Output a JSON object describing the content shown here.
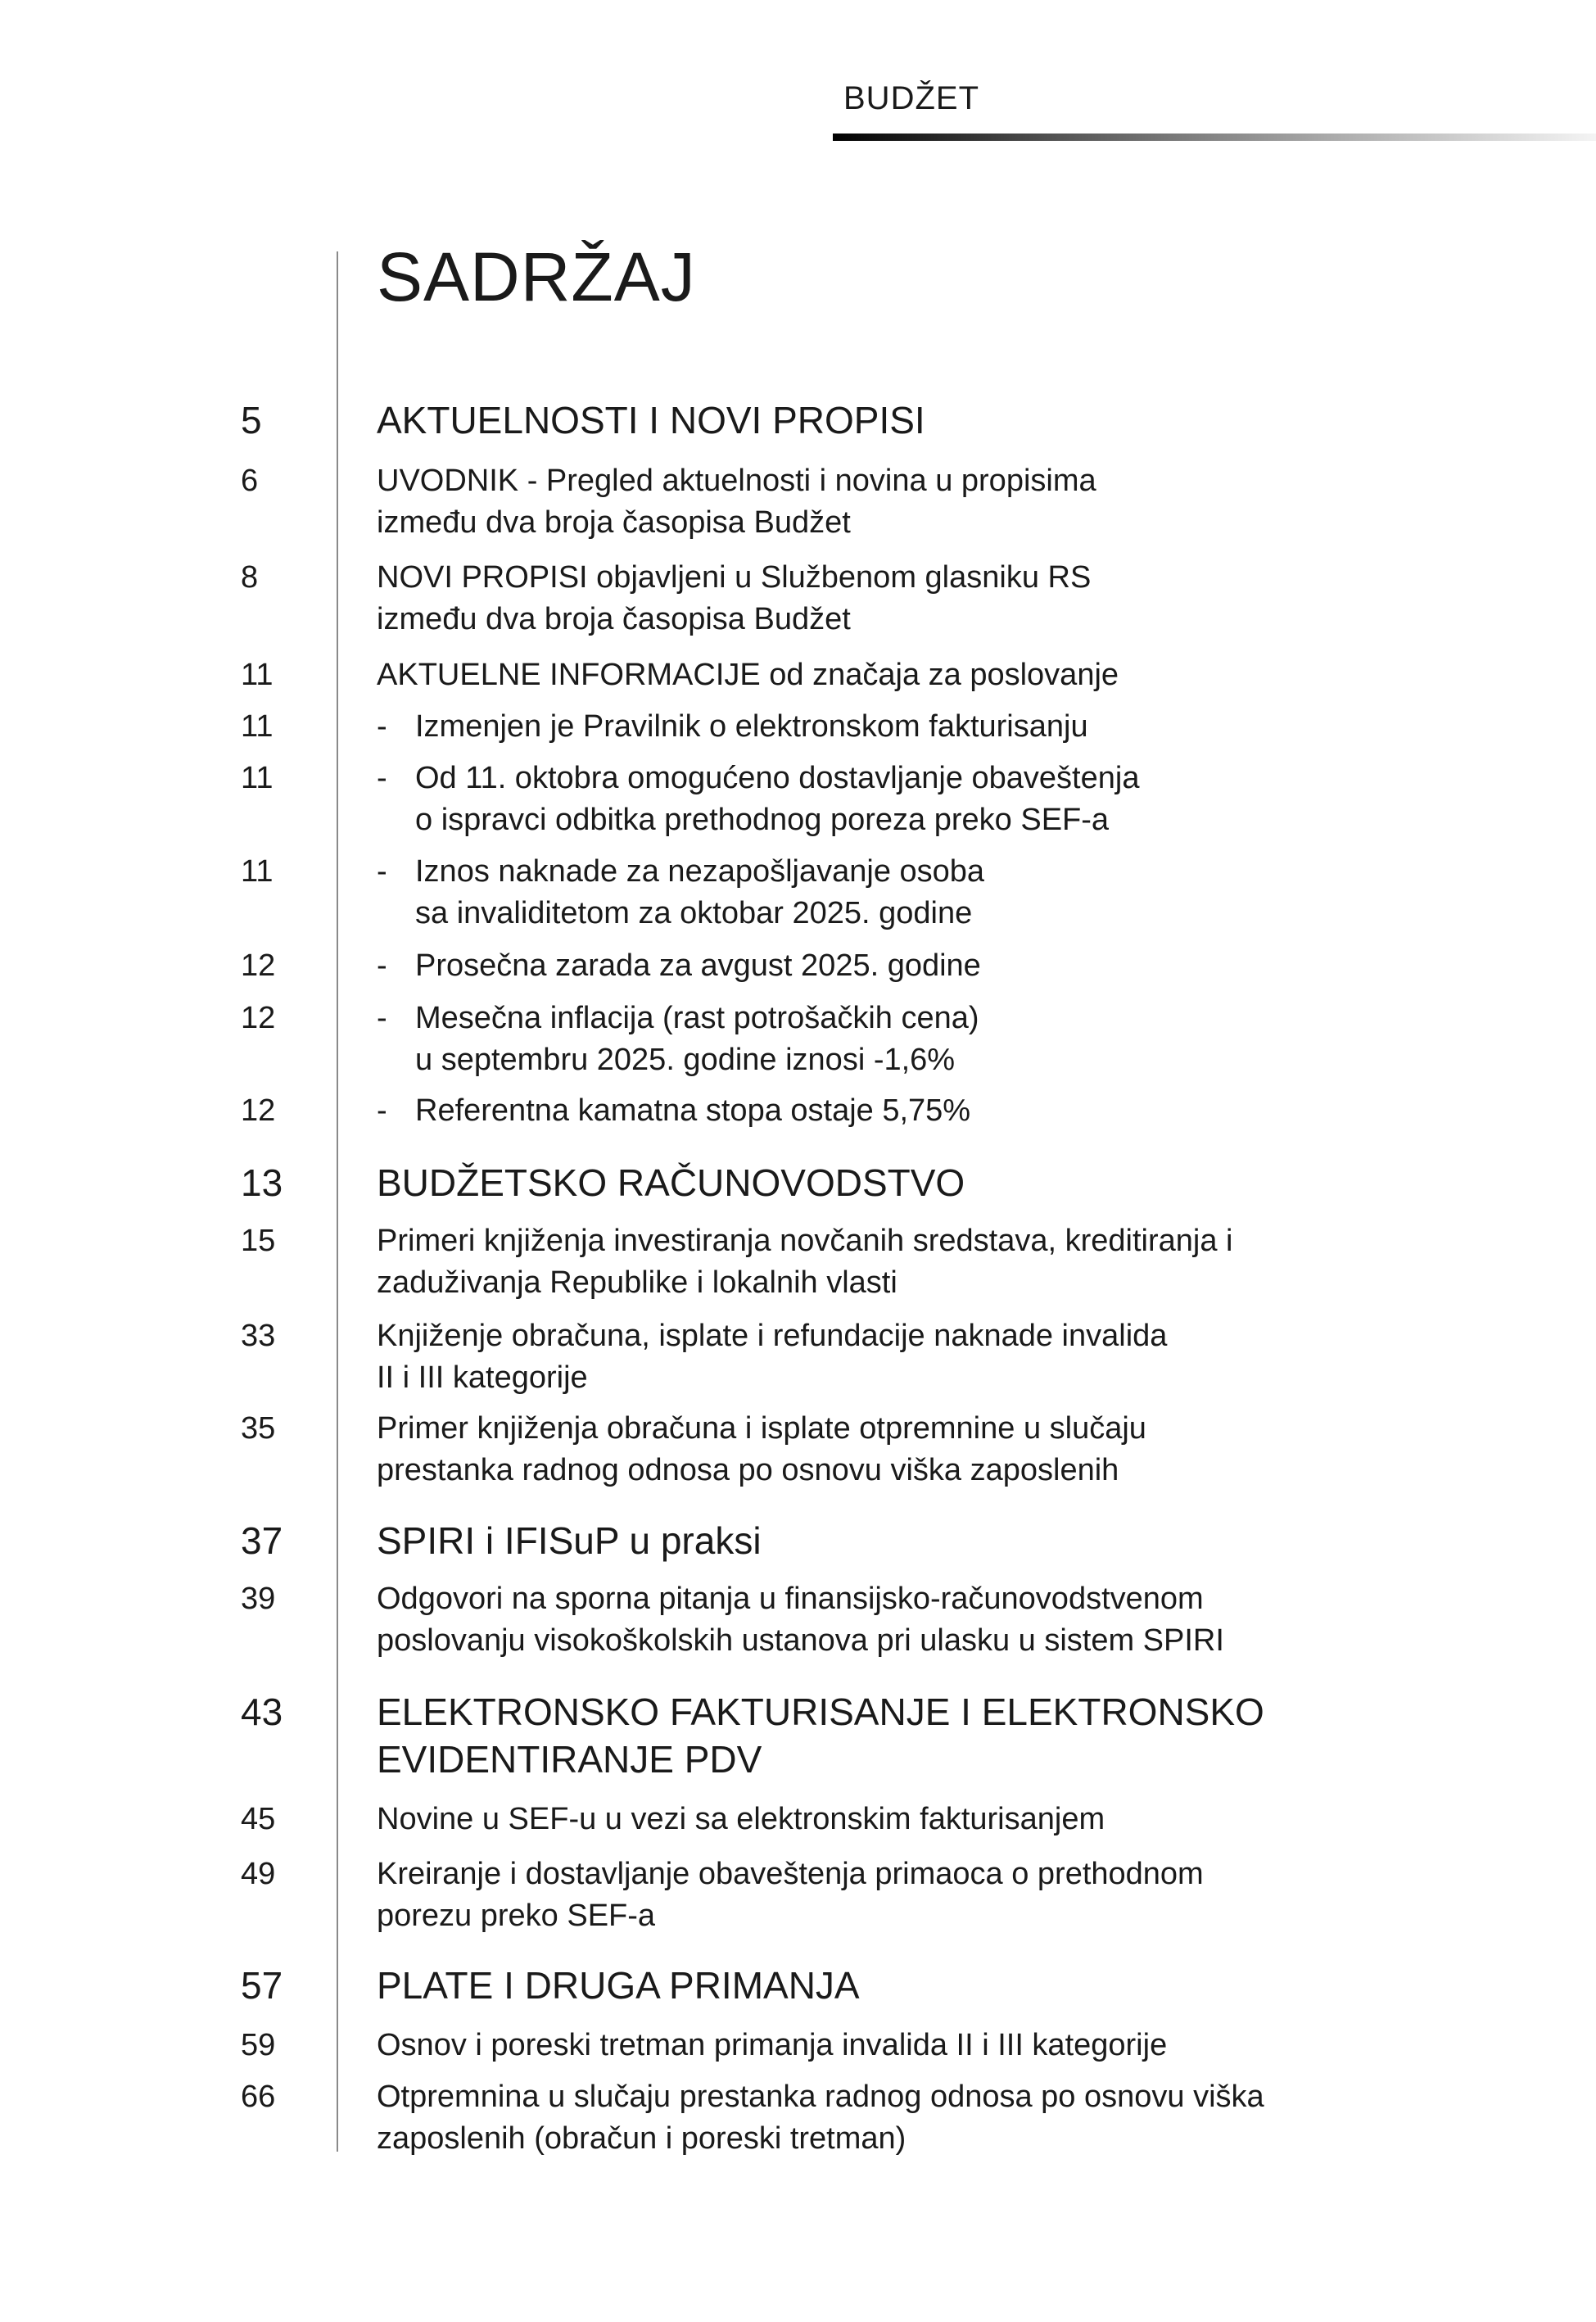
{
  "header": {
    "magazine": "BUDŽET"
  },
  "title": "SADRŽAJ",
  "entries": [
    {
      "type": "section",
      "page": "5",
      "lines": [
        "AKTUELNOSTI I NOVI PROPISI"
      ]
    },
    {
      "type": "item",
      "page": "6",
      "lines": [
        "UVODNIK - Pregled aktuelnosti i novina u propisima",
        "između dva broja časopisa Budžet"
      ]
    },
    {
      "type": "item",
      "page": "8",
      "lines": [
        "NOVI PROPISI objavljeni u Službenom glasniku RS",
        "između dva broja časopisa Budžet"
      ]
    },
    {
      "type": "item",
      "page": "11",
      "lines": [
        "AKTUELNE INFORMACIJE od značaja za poslovanje"
      ]
    },
    {
      "type": "item",
      "dash": "-",
      "page": "11",
      "lines": [
        "Izmenjen je Pravilnik o elektronskom fakturisanju"
      ]
    },
    {
      "type": "item",
      "dash": "-",
      "page": "11",
      "lines": [
        "Od 11. oktobra omogućeno dostavljanje obaveštenja",
        "o ispravci odbitka prethodnog poreza preko SEF-a"
      ]
    },
    {
      "type": "item",
      "dash": "-",
      "page": "11",
      "lines": [
        "Iznos naknade za nezapošljavanje osoba",
        "sa invaliditetom za oktobar 2025. godine"
      ]
    },
    {
      "type": "item",
      "dash": "-",
      "page": "12",
      "lines": [
        "Prosečna zarada za avgust 2025. godine"
      ]
    },
    {
      "type": "item",
      "dash": "-",
      "page": "12",
      "lines": [
        "Mesečna inflacija (rast potrošačkih cena)",
        "u septembru 2025. godine iznosi -1,6%"
      ]
    },
    {
      "type": "item",
      "dash": "-",
      "page": "12",
      "lines": [
        "Referentna kamatna stopa ostaje 5,75%"
      ]
    },
    {
      "type": "section",
      "page": "13",
      "lines": [
        "BUDŽETSKO RAČUNOVODSTVO"
      ]
    },
    {
      "type": "item",
      "page": "15",
      "lines": [
        "Primeri knjiženja investiranja novčanih sredstava, kreditiranja i",
        "zaduživanja Republike i lokalnih vlasti"
      ]
    },
    {
      "type": "item",
      "page": "33",
      "lines": [
        "Knjiženje obračuna, isplate i refundacije naknade invalida",
        "II i III kategorije"
      ]
    },
    {
      "type": "item",
      "page": "35",
      "lines": [
        "Primer knjiženja obračuna i isplate otpremnine u slučaju",
        "prestanka radnog odnosa po osnovu viška zaposlenih"
      ]
    },
    {
      "type": "section",
      "page": "37",
      "lines": [
        "SPIRI i IFISuP u praksi"
      ]
    },
    {
      "type": "item",
      "page": "39",
      "lines": [
        "Odgovori na sporna pitanja u finansijsko-računovodstvenom",
        "poslovanju visokoškolskih ustanova pri ulasku u sistem SPIRI"
      ]
    },
    {
      "type": "section",
      "page": "43",
      "lines": [
        "ELEKTRONSKO FAKTURISANJE I ELEKTRONSKO",
        "EVIDENTIRANJE PDV"
      ]
    },
    {
      "type": "item",
      "page": "45",
      "lines": [
        "Novine u SEF-u u vezi sa elektronskim fakturisanjem"
      ]
    },
    {
      "type": "item",
      "page": "49",
      "lines": [
        "Kreiranje i dostavljanje obaveštenja primaoca o prethodnom",
        "porezu preko SEF-a"
      ]
    },
    {
      "type": "section",
      "page": "57",
      "lines": [
        "PLATE I DRUGA PRIMANJA"
      ]
    },
    {
      "type": "item",
      "page": "59",
      "lines": [
        "Osnov i poreski tretman primanja invalida II i III kategorije"
      ]
    },
    {
      "type": "item",
      "page": "66",
      "lines": [
        "Otpremnina u slučaju prestanka radnog odnosa po osnovu viška",
        "zaposlenih (obračun i poreski tretman)"
      ]
    }
  ]
}
